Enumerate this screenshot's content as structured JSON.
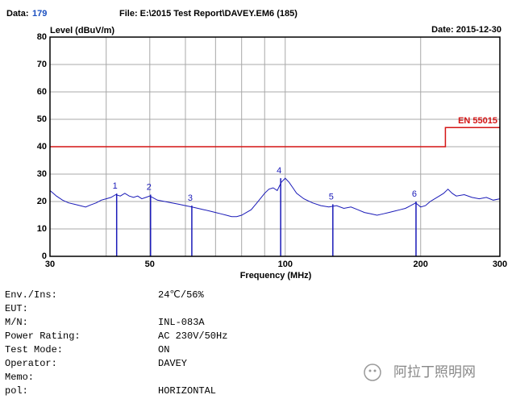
{
  "header": {
    "data_label": "Data:",
    "data_no": "179",
    "file": "File: E:\\2015 Test Report\\DAVEY.EM6  (185)",
    "date": "Date: 2015-12-30"
  },
  "chart_data": {
    "type": "line",
    "ylabel": "Level (dBuV/m)",
    "xlabel": "Frequency (MHz)",
    "log_x": true,
    "xlim": [
      30,
      300
    ],
    "xticks": [
      30,
      50,
      100,
      200,
      300
    ],
    "x_minor_grid": [
      40,
      60,
      70,
      80,
      90
    ],
    "ylim": [
      0,
      80
    ],
    "yticks": [
      0,
      10,
      20,
      30,
      40,
      50,
      60,
      70,
      80
    ],
    "grid": true,
    "series": [
      {
        "color": "#1a1ab8",
        "x": [
          30,
          30.5,
          31,
          32,
          33,
          34,
          35,
          36,
          37,
          38,
          39,
          40,
          41,
          42,
          43,
          44,
          45,
          46,
          47,
          48,
          49,
          50,
          52,
          54,
          56,
          58,
          60,
          62,
          64,
          66,
          68,
          70,
          72,
          74,
          76,
          78,
          80,
          82,
          84,
          86,
          88,
          90,
          92,
          94,
          96,
          98,
          100,
          102,
          104,
          106,
          110,
          115,
          120,
          125,
          130,
          135,
          140,
          145,
          150,
          155,
          160,
          165,
          170,
          175,
          180,
          185,
          190,
          195,
          200,
          205,
          210,
          215,
          220,
          225,
          230,
          235,
          240,
          250,
          260,
          270,
          280,
          290,
          300
        ],
        "values": [
          24,
          23,
          22,
          20.5,
          19.5,
          19,
          18.5,
          18,
          18.8,
          19.5,
          20.5,
          21,
          21.5,
          22.5,
          22,
          23,
          22,
          21.5,
          22,
          21,
          21.5,
          22,
          20.5,
          20,
          19.5,
          19,
          18.5,
          18,
          17.5,
          17,
          16.5,
          16,
          15.5,
          15,
          14.5,
          14.5,
          15,
          16,
          17,
          19,
          21,
          23,
          24.5,
          25,
          24,
          27,
          28.5,
          27,
          25,
          23,
          21,
          19.5,
          18.5,
          18,
          18.5,
          17.5,
          18,
          17,
          16,
          15.5,
          15,
          15.5,
          16,
          16.5,
          17,
          17.5,
          18.5,
          19.5,
          18,
          18.5,
          20,
          21,
          22,
          23,
          24.5,
          23,
          22,
          22.5,
          21.5,
          21,
          21.5,
          20.5,
          21
        ]
      },
      {
        "name": "EN 55015",
        "color": "#d41414",
        "x": [
          30,
          227,
          227,
          300
        ],
        "values": [
          40,
          40,
          47,
          47
        ]
      }
    ],
    "markers": [
      {
        "label": "1",
        "x": 42.2,
        "value": 22.9
      },
      {
        "label": "2",
        "x": 50.2,
        "value": 22.5
      },
      {
        "label": "3",
        "x": 62,
        "value": 18.5
      },
      {
        "label": "4",
        "x": 97.7,
        "value": 28.5
      },
      {
        "label": "5",
        "x": 127.6,
        "value": 19
      },
      {
        "label": "6",
        "x": 195.3,
        "value": 20
      }
    ],
    "marker_color": "#1a1ab8"
  },
  "info": [
    {
      "label": "Env./Ins:",
      "value": "24℃/56%"
    },
    {
      "label": "EUT:"
    },
    {
      "label": "M/N:",
      "value": "INL-083A"
    },
    {
      "label": "Power Rating:",
      "value": "AC 230V/50Hz"
    },
    {
      "label": "Test Mode:",
      "value": "ON"
    },
    {
      "label": "Operator:",
      "value": "DAVEY"
    },
    {
      "label": "Memo:"
    },
    {
      "label": "pol:",
      "value": "HORIZONTAL"
    }
  ],
  "watermark": "阿拉丁照明网"
}
